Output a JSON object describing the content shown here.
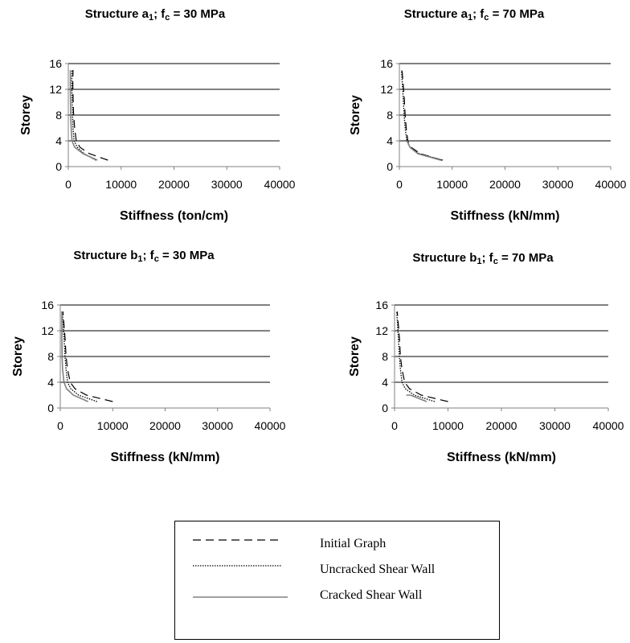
{
  "line_styles": {
    "initial": {
      "color": "#000000",
      "dash": "10,6",
      "width": 1.2
    },
    "uncracked": {
      "color": "#000000",
      "dash": "1.5,1.5",
      "width": 1.3
    },
    "cracked": {
      "color": "#808080",
      "dash": "",
      "width": 1.6
    }
  },
  "legend": {
    "items": [
      {
        "key": "initial",
        "label": "Initial Graph"
      },
      {
        "key": "uncracked",
        "label": "Uncracked Shear Wall"
      },
      {
        "key": "cracked",
        "label": "Cracked Shear Wall"
      }
    ]
  },
  "chart_data": [
    {
      "type": "line",
      "title": {
        "main": "Structure a",
        "sub": "1",
        "mid": "; f",
        "sub2": "c",
        "tail": " = 30 MPa"
      },
      "xlabel": "Stiffness (ton/cm)",
      "ylabel": "Storey",
      "xlim": [
        0,
        40000
      ],
      "ylim": [
        0,
        16
      ],
      "xticks": [
        0,
        10000,
        20000,
        30000,
        40000
      ],
      "yticks": [
        0,
        4,
        8,
        12,
        16
      ],
      "grid": "horizontal",
      "series": [
        {
          "key": "initial",
          "points": [
            [
              7500,
              1
            ],
            [
              4000,
              2
            ],
            [
              2200,
              3
            ],
            [
              1500,
              4
            ],
            [
              1200,
              6
            ],
            [
              1000,
              8
            ],
            [
              900,
              11
            ],
            [
              850,
              13
            ],
            [
              900,
              15
            ]
          ]
        },
        {
          "key": "uncracked",
          "points": [
            [
              5200,
              1
            ],
            [
              3000,
              2
            ],
            [
              1700,
              3
            ],
            [
              1100,
              4
            ],
            [
              900,
              6
            ],
            [
              800,
              8
            ],
            [
              700,
              11
            ],
            [
              650,
              13
            ],
            [
              700,
              15
            ]
          ]
        },
        {
          "key": "cracked",
          "points": [
            [
              5500,
              1
            ],
            [
              2800,
              2
            ],
            [
              1200,
              3
            ],
            [
              700,
              4
            ],
            [
              550,
              6
            ],
            [
              450,
              8
            ],
            [
              400,
              11
            ],
            [
              380,
              13
            ],
            [
              400,
              15
            ]
          ]
        }
      ]
    },
    {
      "type": "line",
      "title": {
        "main": "Structure a",
        "sub": "1",
        "mid": "; f",
        "sub2": "c",
        "tail": " = 70 MPa"
      },
      "xlabel": "Stiffness (kN/mm)",
      "ylabel": "Storey",
      "xlim": [
        0,
        40000
      ],
      "ylim": [
        0,
        16
      ],
      "xticks": [
        0,
        10000,
        20000,
        30000,
        40000
      ],
      "yticks": [
        0,
        4,
        8,
        12,
        16
      ],
      "grid": "horizontal",
      "series": [
        {
          "key": "initial",
          "points": [
            [
              8000,
              1
            ],
            [
              4000,
              2
            ],
            [
              2200,
              3
            ],
            [
              1600,
              4
            ],
            [
              1300,
              6
            ],
            [
              1100,
              8
            ],
            [
              900,
              11
            ],
            [
              700,
              13
            ],
            [
              500,
              15
            ]
          ]
        },
        {
          "key": "uncracked",
          "points": [
            [
              8200,
              1
            ],
            [
              3800,
              2
            ],
            [
              2000,
              3
            ],
            [
              1400,
              4
            ],
            [
              1100,
              6
            ],
            [
              900,
              8
            ],
            [
              700,
              11
            ],
            [
              550,
              13
            ],
            [
              400,
              15
            ]
          ]
        },
        {
          "key": "cracked",
          "points": [
            [
              7800,
              1
            ],
            [
              3500,
              2
            ],
            [
              2000,
              3
            ],
            [
              1500,
              4
            ]
          ]
        }
      ]
    },
    {
      "type": "line",
      "title": {
        "main": "Structure b",
        "sub": "1",
        "mid": "; f",
        "sub2": "c",
        "tail": " = 30 MPa"
      },
      "xlabel": "Stiffness (kN/mm)",
      "ylabel": "Storey",
      "xlim": [
        0,
        40000
      ],
      "ylim": [
        0,
        16
      ],
      "xticks": [
        0,
        10000,
        20000,
        30000,
        40000
      ],
      "yticks": [
        0,
        4,
        8,
        12,
        16
      ],
      "grid": "horizontal",
      "series": [
        {
          "key": "initial",
          "points": [
            [
              10000,
              1
            ],
            [
              5000,
              2
            ],
            [
              2800,
              3
            ],
            [
              1900,
              4
            ],
            [
              1400,
              6
            ],
            [
              1100,
              8
            ],
            [
              900,
              11
            ],
            [
              700,
              13
            ],
            [
              500,
              15
            ]
          ]
        },
        {
          "key": "uncracked",
          "points": [
            [
              7000,
              1
            ],
            [
              3500,
              2
            ],
            [
              2000,
              3
            ],
            [
              1400,
              4
            ],
            [
              1100,
              6
            ],
            [
              900,
              8
            ],
            [
              700,
              11
            ],
            [
              550,
              13
            ],
            [
              400,
              15
            ]
          ]
        },
        {
          "key": "cracked",
          "points": [
            [
              5300,
              1
            ],
            [
              2500,
              2
            ],
            [
              1200,
              3
            ],
            [
              700,
              4
            ],
            [
              450,
              6
            ],
            [
              350,
              8
            ],
            [
              300,
              11
            ],
            [
              300,
              13
            ],
            [
              300,
              15
            ]
          ]
        }
      ]
    },
    {
      "type": "line",
      "title": {
        "main": "Structure b",
        "sub": "1",
        "mid": "; f",
        "sub2": "c",
        "tail": " = 70 MPa"
      },
      "xlabel": "Stiffness (kN/mm)",
      "ylabel": "Storey",
      "xlim": [
        0,
        40000
      ],
      "ylim": [
        0,
        16
      ],
      "xticks": [
        0,
        10000,
        20000,
        30000,
        40000
      ],
      "yticks": [
        0,
        4,
        8,
        12,
        16
      ],
      "grid": "horizontal",
      "series": [
        {
          "key": "initial",
          "points": [
            [
              10000,
              1
            ],
            [
              5000,
              2
            ],
            [
              2800,
              3
            ],
            [
              1900,
              4
            ],
            [
              1400,
              6
            ],
            [
              1100,
              8
            ],
            [
              900,
              11
            ],
            [
              700,
              13
            ],
            [
              500,
              15
            ]
          ]
        },
        {
          "key": "uncracked",
          "points": [
            [
              7500,
              1
            ],
            [
              3700,
              2
            ],
            [
              2000,
              3
            ],
            [
              1400,
              4
            ],
            [
              1100,
              6
            ],
            [
              900,
              8
            ],
            [
              700,
              11
            ],
            [
              550,
              13
            ],
            [
              400,
              15
            ]
          ]
        },
        {
          "key": "cracked",
          "points": [
            [
              6000,
              1
            ],
            [
              3000,
              2
            ],
            [
              2200,
              2
            ]
          ]
        }
      ]
    }
  ]
}
